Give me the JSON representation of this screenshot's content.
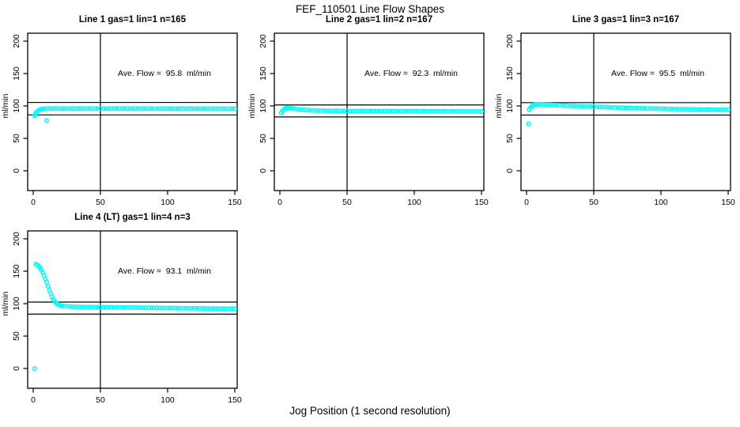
{
  "title": "FEF_110501  Line Flow Shapes",
  "xlabel": "Jog Position (1 second resolution)",
  "colors": {
    "points": "#00ffff",
    "axis": "#000000",
    "text": "#000000",
    "background": "#ffffff"
  },
  "chart_data": [
    {
      "type": "scatter",
      "title": "Line 1 gas=1 lin=1 n=165",
      "annotation": "Ave. Flow =  95.8  ml/min",
      "ave_flow_ml_min": 95.8,
      "n": 165,
      "ylabel": "ml/min",
      "xlim": [
        0,
        150
      ],
      "ylim": [
        0,
        200
      ],
      "xticks": [
        0,
        50,
        100,
        150
      ],
      "yticks": [
        0,
        50,
        100,
        150,
        200
      ],
      "vline": 50,
      "hlines": [
        105.4,
        86.2
      ],
      "marker": "open-circle",
      "points": [
        [
          10,
          77.5
        ],
        [
          1,
          85
        ],
        [
          1.5,
          87
        ],
        [
          2,
          89
        ],
        [
          2.5,
          90.5
        ],
        [
          3,
          91.5
        ],
        [
          3.5,
          92.5
        ],
        [
          4,
          93.3
        ],
        [
          5,
          94.4
        ],
        [
          6,
          95
        ],
        [
          7,
          95.4
        ],
        [
          8,
          95.7
        ],
        [
          10,
          95.9
        ],
        [
          12,
          96.0
        ],
        [
          14,
          95.8
        ],
        [
          16,
          96.1
        ],
        [
          18,
          95.9
        ],
        [
          20,
          96.0
        ],
        [
          22,
          95.8
        ],
        [
          24,
          96.1
        ],
        [
          26,
          95.9
        ],
        [
          28,
          96.0
        ],
        [
          30,
          95.8
        ],
        [
          32,
          96.0
        ],
        [
          34,
          95.9
        ],
        [
          36,
          96.1
        ],
        [
          38,
          95.8
        ],
        [
          40,
          96.0
        ],
        [
          42,
          95.9
        ],
        [
          44,
          95.8
        ],
        [
          46,
          96.0
        ],
        [
          48,
          95.9
        ],
        [
          50,
          96.0
        ],
        [
          52,
          95.8
        ],
        [
          54,
          96.0
        ],
        [
          56,
          95.9
        ],
        [
          58,
          95.8
        ],
        [
          60,
          96.0
        ],
        [
          62,
          95.9
        ],
        [
          64,
          95.8
        ],
        [
          66,
          96.0
        ],
        [
          68,
          95.9
        ],
        [
          70,
          95.8
        ],
        [
          72,
          96.0
        ],
        [
          74,
          95.9
        ],
        [
          76,
          95.8
        ],
        [
          78,
          96.0
        ],
        [
          80,
          95.9
        ],
        [
          82,
          95.8
        ],
        [
          84,
          95.9
        ],
        [
          86,
          95.8
        ],
        [
          88,
          95.9
        ],
        [
          90,
          95.8
        ],
        [
          92,
          95.9
        ],
        [
          94,
          95.8
        ],
        [
          96,
          95.9
        ],
        [
          98,
          95.8
        ],
        [
          100,
          95.9
        ],
        [
          102,
          95.8
        ],
        [
          104,
          95.9
        ],
        [
          106,
          95.8
        ],
        [
          108,
          95.7
        ],
        [
          110,
          95.9
        ],
        [
          112,
          95.8
        ],
        [
          114,
          95.7
        ],
        [
          116,
          95.8
        ],
        [
          118,
          95.7
        ],
        [
          120,
          95.8
        ],
        [
          122,
          95.7
        ],
        [
          124,
          95.8
        ],
        [
          126,
          95.7
        ],
        [
          128,
          95.8
        ],
        [
          130,
          95.7
        ],
        [
          132,
          95.6
        ],
        [
          134,
          95.8
        ],
        [
          136,
          95.7
        ],
        [
          138,
          95.6
        ],
        [
          140,
          95.7
        ],
        [
          142,
          95.6
        ],
        [
          144,
          95.7
        ],
        [
          146,
          95.6
        ],
        [
          148,
          95.7
        ],
        [
          150,
          95.6
        ]
      ]
    },
    {
      "type": "scatter",
      "title": "Line 2 gas=1 lin=2 n=167",
      "annotation": "Ave. Flow =  92.3  ml/min",
      "ave_flow_ml_min": 92.3,
      "n": 167,
      "ylabel": "ml/min",
      "xlim": [
        0,
        150
      ],
      "ylim": [
        0,
        200
      ],
      "xticks": [
        0,
        50,
        100,
        150
      ],
      "yticks": [
        0,
        50,
        100,
        150,
        200
      ],
      "vline": 50,
      "hlines": [
        101.5,
        83.1
      ],
      "marker": "open-circle",
      "points": [
        [
          1,
          89
        ],
        [
          2,
          92.5
        ],
        [
          3,
          95
        ],
        [
          4,
          96.3
        ],
        [
          5,
          96.8
        ],
        [
          6,
          96.8
        ],
        [
          7,
          96.6
        ],
        [
          8,
          96.4
        ],
        [
          9,
          96.1
        ],
        [
          10,
          95.8
        ],
        [
          12,
          95.3
        ],
        [
          14,
          94.8
        ],
        [
          16,
          94.4
        ],
        [
          18,
          94.0
        ],
        [
          20,
          93.7
        ],
        [
          22,
          93.4
        ],
        [
          24,
          93.2
        ],
        [
          26,
          93.0
        ],
        [
          28,
          92.9
        ],
        [
          30,
          92.8
        ],
        [
          32,
          92.7
        ],
        [
          34,
          92.6
        ],
        [
          36,
          92.5
        ],
        [
          38,
          92.5
        ],
        [
          40,
          92.4
        ],
        [
          42,
          92.4
        ],
        [
          44,
          92.3
        ],
        [
          46,
          92.3
        ],
        [
          48,
          92.3
        ],
        [
          50,
          92.3
        ],
        [
          52,
          92.2
        ],
        [
          54,
          92.2
        ],
        [
          56,
          92.2
        ],
        [
          58,
          92.2
        ],
        [
          60,
          92.2
        ],
        [
          62,
          92.1
        ],
        [
          64,
          92.1
        ],
        [
          66,
          92.1
        ],
        [
          68,
          92.1
        ],
        [
          70,
          92.1
        ],
        [
          72,
          92.0
        ],
        [
          74,
          92.0
        ],
        [
          76,
          92.0
        ],
        [
          78,
          92.0
        ],
        [
          80,
          92.0
        ],
        [
          82,
          92.0
        ],
        [
          84,
          91.9
        ],
        [
          86,
          91.9
        ],
        [
          88,
          91.9
        ],
        [
          90,
          91.9
        ],
        [
          92,
          91.9
        ],
        [
          94,
          91.9
        ],
        [
          96,
          91.8
        ],
        [
          98,
          91.8
        ],
        [
          100,
          91.8
        ],
        [
          102,
          91.8
        ],
        [
          104,
          91.8
        ],
        [
          106,
          91.8
        ],
        [
          108,
          91.8
        ],
        [
          110,
          91.7
        ],
        [
          112,
          91.7
        ],
        [
          114,
          91.7
        ],
        [
          116,
          91.7
        ],
        [
          118,
          91.7
        ],
        [
          120,
          91.7
        ],
        [
          122,
          91.7
        ],
        [
          124,
          91.6
        ],
        [
          126,
          91.6
        ],
        [
          128,
          91.6
        ],
        [
          130,
          91.6
        ],
        [
          132,
          91.6
        ],
        [
          134,
          91.6
        ],
        [
          136,
          91.6
        ],
        [
          138,
          91.5
        ],
        [
          140,
          91.5
        ],
        [
          142,
          91.5
        ],
        [
          144,
          91.5
        ],
        [
          146,
          91.5
        ],
        [
          148,
          91.5
        ],
        [
          150,
          91.5
        ]
      ]
    },
    {
      "type": "scatter",
      "title": "Line 3 gas=1 lin=3 n=167",
      "annotation": "Ave. Flow =  95.5  ml/min",
      "ave_flow_ml_min": 95.5,
      "n": 167,
      "ylabel": "ml/min",
      "xlim": [
        0,
        150
      ],
      "ylim": [
        0,
        200
      ],
      "xticks": [
        0,
        50,
        100,
        150
      ],
      "yticks": [
        0,
        50,
        100,
        150,
        200
      ],
      "vline": 50,
      "hlines": [
        105.1,
        86.0
      ],
      "marker": "open-circle",
      "points": [
        [
          1.5,
          72.5
        ],
        [
          2,
          94.5
        ],
        [
          3,
          97.5
        ],
        [
          4,
          99.5
        ],
        [
          5,
          101
        ],
        [
          6,
          102
        ],
        [
          7,
          102.4
        ],
        [
          8,
          102.5
        ],
        [
          9,
          102.5
        ],
        [
          10,
          102.4
        ],
        [
          12,
          102.3
        ],
        [
          14,
          102.1
        ],
        [
          16,
          101.9
        ],
        [
          18,
          101.7
        ],
        [
          20,
          101.5
        ],
        [
          22,
          101.3
        ],
        [
          24,
          101.1
        ],
        [
          26,
          100.9
        ],
        [
          28,
          100.7
        ],
        [
          30,
          100.5
        ],
        [
          32,
          100.3
        ],
        [
          34,
          100.1
        ],
        [
          36,
          99.9
        ],
        [
          38,
          99.7
        ],
        [
          40,
          99.6
        ],
        [
          42,
          99.4
        ],
        [
          44,
          99.2
        ],
        [
          46,
          99.1
        ],
        [
          48,
          98.9
        ],
        [
          50,
          98.8
        ],
        [
          52,
          98.6
        ],
        [
          54,
          98.5
        ],
        [
          56,
          98.3
        ],
        [
          58,
          98.2
        ],
        [
          60,
          98.0
        ],
        [
          62,
          97.9
        ],
        [
          64,
          97.8
        ],
        [
          66,
          97.6
        ],
        [
          68,
          97.5
        ],
        [
          70,
          97.4
        ],
        [
          72,
          97.2
        ],
        [
          74,
          97.1
        ],
        [
          76,
          97.0
        ],
        [
          78,
          96.9
        ],
        [
          80,
          96.7
        ],
        [
          82,
          96.6
        ],
        [
          84,
          96.5
        ],
        [
          86,
          96.4
        ],
        [
          88,
          96.3
        ],
        [
          90,
          96.2
        ],
        [
          92,
          96.1
        ],
        [
          94,
          96.0
        ],
        [
          96,
          95.9
        ],
        [
          98,
          95.8
        ],
        [
          100,
          95.7
        ],
        [
          102,
          95.6
        ],
        [
          104,
          95.5
        ],
        [
          106,
          95.4
        ],
        [
          108,
          95.3
        ],
        [
          110,
          95.2
        ],
        [
          112,
          95.1
        ],
        [
          114,
          95.0
        ],
        [
          116,
          95.0
        ],
        [
          118,
          94.9
        ],
        [
          120,
          94.8
        ],
        [
          122,
          94.7
        ],
        [
          124,
          94.7
        ],
        [
          126,
          94.6
        ],
        [
          128,
          94.5
        ],
        [
          130,
          94.5
        ],
        [
          132,
          94.4
        ],
        [
          134,
          94.4
        ],
        [
          136,
          94.3
        ],
        [
          138,
          94.3
        ],
        [
          140,
          94.2
        ],
        [
          142,
          94.2
        ],
        [
          144,
          94.1
        ],
        [
          146,
          94.1
        ],
        [
          148,
          94.0
        ],
        [
          150,
          94.0
        ]
      ]
    },
    {
      "type": "scatter",
      "title": "Line 4 (LT) gas=1 lin=4 n=3",
      "annotation": "Ave. Flow =  93.1  ml/min",
      "ave_flow_ml_min": 93.1,
      "n": 3,
      "ylabel": "ml/min",
      "xlim": [
        0,
        150
      ],
      "ylim": [
        0,
        200
      ],
      "xticks": [
        0,
        50,
        100,
        150
      ],
      "yticks": [
        0,
        50,
        100,
        150,
        200
      ],
      "vline": 50,
      "hlines": [
        102.4,
        83.8
      ],
      "marker": "open-circle",
      "points": [
        [
          1,
          0
        ],
        [
          2,
          161
        ],
        [
          3,
          160
        ],
        [
          4,
          158
        ],
        [
          5,
          155.5
        ],
        [
          6,
          152
        ],
        [
          7,
          148
        ],
        [
          8,
          143.5
        ],
        [
          9,
          138.5
        ],
        [
          10,
          133
        ],
        [
          11,
          127
        ],
        [
          12,
          121
        ],
        [
          13,
          115.5
        ],
        [
          14,
          110.5
        ],
        [
          15,
          106.5
        ],
        [
          16,
          103.5
        ],
        [
          17,
          101
        ],
        [
          18,
          99.5
        ],
        [
          19,
          98.3
        ],
        [
          20,
          97.4
        ],
        [
          21,
          96.8
        ],
        [
          22,
          96.4
        ],
        [
          24,
          95.9
        ],
        [
          26,
          95.6
        ],
        [
          28,
          95.4
        ],
        [
          30,
          95.2
        ],
        [
          32,
          95.1
        ],
        [
          34,
          95.0
        ],
        [
          36,
          94.9
        ],
        [
          38,
          94.8
        ],
        [
          40,
          94.8
        ],
        [
          42,
          94.7
        ],
        [
          44,
          94.7
        ],
        [
          46,
          94.6
        ],
        [
          48,
          94.6
        ],
        [
          50,
          94.5
        ],
        [
          52,
          94.5
        ],
        [
          54,
          94.4
        ],
        [
          56,
          94.4
        ],
        [
          58,
          94.3
        ],
        [
          60,
          94.3
        ],
        [
          62,
          94.2
        ],
        [
          64,
          94.2
        ],
        [
          66,
          94.1
        ],
        [
          68,
          94.1
        ],
        [
          70,
          94.0
        ],
        [
          72,
          94.0
        ],
        [
          74,
          93.9
        ],
        [
          76,
          93.9
        ],
        [
          78,
          93.8
        ],
        [
          80,
          93.8
        ],
        [
          82,
          93.7
        ],
        [
          84,
          93.7
        ],
        [
          86,
          93.6
        ],
        [
          88,
          93.6
        ],
        [
          90,
          93.5
        ],
        [
          92,
          93.5
        ],
        [
          94,
          93.4
        ],
        [
          96,
          93.4
        ],
        [
          98,
          93.3
        ],
        [
          100,
          93.3
        ],
        [
          102,
          93.2
        ],
        [
          104,
          93.2
        ],
        [
          106,
          93.1
        ],
        [
          108,
          93.1
        ],
        [
          110,
          93.0
        ],
        [
          112,
          93.0
        ],
        [
          114,
          92.9
        ],
        [
          116,
          92.9
        ],
        [
          118,
          92.8
        ],
        [
          120,
          92.8
        ],
        [
          122,
          92.7
        ],
        [
          124,
          92.7
        ],
        [
          126,
          92.6
        ],
        [
          128,
          92.6
        ],
        [
          130,
          92.5
        ],
        [
          132,
          92.5
        ],
        [
          134,
          92.4
        ],
        [
          136,
          92.4
        ],
        [
          138,
          92.3
        ],
        [
          140,
          92.3
        ],
        [
          142,
          92.2
        ],
        [
          144,
          92.2
        ],
        [
          146,
          92.1
        ],
        [
          148,
          92.1
        ],
        [
          150,
          92.0
        ]
      ]
    }
  ]
}
